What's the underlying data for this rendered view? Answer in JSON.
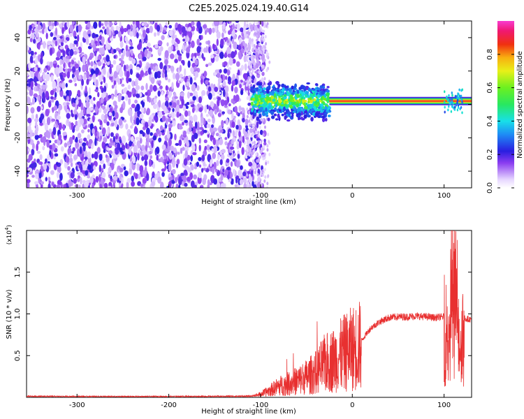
{
  "title": "C2E5.2025.024.19.40.G14",
  "chart_data": [
    {
      "type": "heatmap",
      "xlabel": "Height of straight line (km)",
      "ylabel": "Frequency (Hz)",
      "xlim": [
        -355,
        130
      ],
      "ylim": [
        -50,
        50
      ],
      "xticks": [
        -300,
        -200,
        -100,
        0,
        100
      ],
      "yticks": [
        -40,
        -20,
        0,
        20,
        40
      ],
      "grid": false,
      "description_regions": [
        {
          "x_range": [
            -355,
            -110
          ],
          "content": "noise",
          "amplitude_range": [
            0.0,
            0.2
          ]
        },
        {
          "x_range": [
            -110,
            -25
          ],
          "content": "carrier band near 0 Hz",
          "amplitude_range": [
            0.3,
            0.8
          ]
        },
        {
          "x_range": [
            -25,
            130
          ],
          "content": "narrow carrier line at ~2 Hz",
          "amplitude_range": [
            0.8,
            1.0
          ]
        }
      ],
      "colorbar": {
        "label": "Normalized spectral amplitude",
        "range": [
          0.0,
          1.0
        ],
        "ticks": [
          0.0,
          0.2,
          0.4,
          0.6,
          0.8
        ],
        "tick_labels": [
          "0.0",
          "0.2",
          "0.4",
          "0.6",
          "0.8"
        ]
      }
    },
    {
      "type": "line",
      "xlabel": "Height of straight line (km)",
      "ylabel": "SNR (10 * v/v)",
      "multiplier_label": "(x10",
      "multiplier_exp": "4",
      "xlim": [
        -355,
        130
      ],
      "ylim": [
        0,
        20000
      ],
      "xticks": [
        -300,
        -200,
        -100,
        0,
        100
      ],
      "yticks": [
        5000,
        10000,
        15000
      ],
      "ytick_labels": [
        "0.5",
        "1.0",
        "1.5"
      ],
      "color": "#e83030",
      "series": [
        {
          "x": [
            -355,
            -300,
            -250,
            -200,
            -150,
            -110,
            -100,
            -90,
            -80,
            -70,
            -60,
            -50,
            -40,
            -30,
            -20,
            -10,
            0,
            10,
            20,
            30,
            40,
            50,
            60,
            70,
            80,
            90,
            100,
            105,
            110,
            115,
            120,
            130
          ],
          "y": [
            120,
            110,
            100,
            110,
            120,
            150,
            400,
            900,
            1500,
            1800,
            2200,
            2700,
            3300,
            4500,
            5000,
            5800,
            6500,
            7000,
            8500,
            9300,
            9800,
            9900,
            9900,
            10000,
            9900,
            9800,
            9900,
            9000,
            19000,
            8000,
            9800,
            9600
          ]
        }
      ]
    }
  ]
}
